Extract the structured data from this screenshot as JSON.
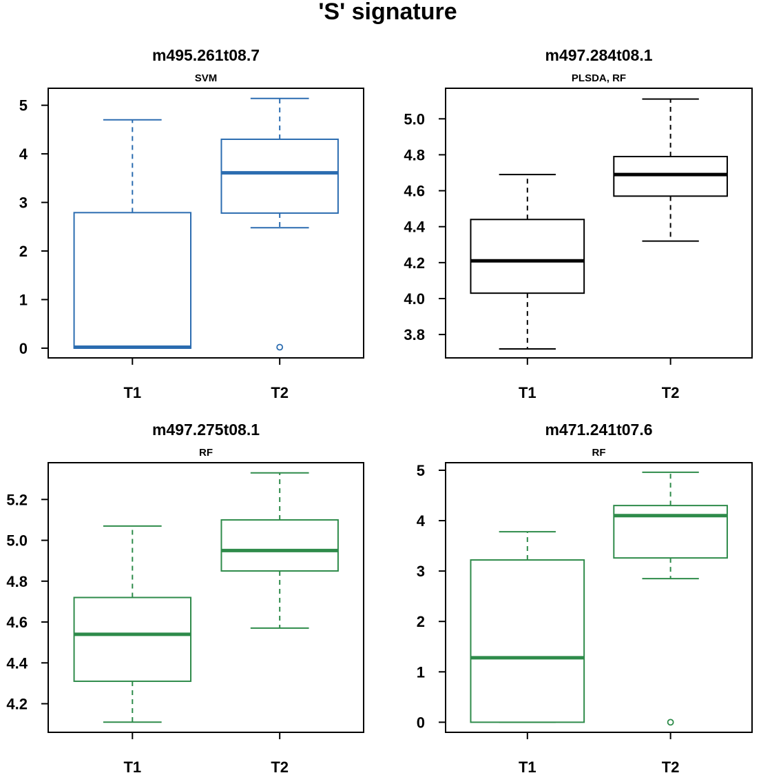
{
  "title": "'S' signature",
  "chart_data": [
    {
      "type": "box",
      "title": "m495.261t08.7",
      "subtitle": "SVM",
      "color": "#2b6cb0",
      "categories": [
        "T1",
        "T2"
      ],
      "ylim": [
        -0.2,
        5.35
      ],
      "yticks": [
        0,
        1,
        2,
        3,
        4,
        5
      ],
      "ytick_labels": [
        "0",
        "1",
        "2",
        "3",
        "4",
        "5"
      ],
      "boxes": [
        {
          "name": "T1",
          "whisker_low": 0.0,
          "q1": 0.0,
          "median": 0.02,
          "q3": 2.79,
          "whisker_high": 4.7,
          "outliers": []
        },
        {
          "name": "T2",
          "whisker_low": 2.48,
          "q1": 2.78,
          "median": 3.61,
          "q3": 4.3,
          "whisker_high": 5.14,
          "outliers": [
            0.02
          ]
        }
      ]
    },
    {
      "type": "box",
      "title": "m497.284t08.1",
      "subtitle": "PLSDA, RF",
      "color": "#000000",
      "categories": [
        "T1",
        "T2"
      ],
      "ylim": [
        3.67,
        5.17
      ],
      "yticks": [
        3.8,
        4.0,
        4.2,
        4.4,
        4.6,
        4.8,
        5.0
      ],
      "ytick_labels": [
        "3.8",
        "4.0",
        "4.2",
        "4.4",
        "4.6",
        "4.8",
        "5.0"
      ],
      "boxes": [
        {
          "name": "T1",
          "whisker_low": 3.72,
          "q1": 4.03,
          "median": 4.21,
          "q3": 4.44,
          "whisker_high": 4.69,
          "outliers": []
        },
        {
          "name": "T2",
          "whisker_low": 4.32,
          "q1": 4.57,
          "median": 4.69,
          "q3": 4.79,
          "whisker_high": 5.11,
          "outliers": []
        }
      ]
    },
    {
      "type": "box",
      "title": "m497.275t08.1",
      "subtitle": "RF",
      "color": "#2e8b4a",
      "categories": [
        "T1",
        "T2"
      ],
      "ylim": [
        4.06,
        5.38
      ],
      "yticks": [
        4.2,
        4.4,
        4.6,
        4.8,
        5.0,
        5.2
      ],
      "ytick_labels": [
        "4.2",
        "4.4",
        "4.6",
        "4.8",
        "5.0",
        "5.2"
      ],
      "boxes": [
        {
          "name": "T1",
          "whisker_low": 4.11,
          "q1": 4.31,
          "median": 4.54,
          "q3": 4.72,
          "whisker_high": 5.07,
          "outliers": []
        },
        {
          "name": "T2",
          "whisker_low": 4.57,
          "q1": 4.85,
          "median": 4.95,
          "q3": 5.1,
          "whisker_high": 5.33,
          "outliers": []
        }
      ]
    },
    {
      "type": "box",
      "title": "m471.241t07.6",
      "subtitle": "RF",
      "color": "#2e8b4a",
      "outlier_color": "#2e8b4a",
      "categories": [
        "T1",
        "T2"
      ],
      "ylim": [
        -0.2,
        5.15
      ],
      "yticks": [
        0,
        1,
        2,
        3,
        4,
        5
      ],
      "ytick_labels": [
        "0",
        "1",
        "2",
        "3",
        "4",
        "5"
      ],
      "boxes": [
        {
          "name": "T1",
          "whisker_low": 0.0,
          "q1": 0.0,
          "median": 1.28,
          "q3": 3.22,
          "whisker_high": 3.78,
          "outliers": []
        },
        {
          "name": "T2",
          "whisker_low": 2.85,
          "q1": 3.26,
          "median": 4.1,
          "q3": 4.3,
          "whisker_high": 4.96,
          "outliers": [
            0.0
          ]
        }
      ]
    }
  ]
}
